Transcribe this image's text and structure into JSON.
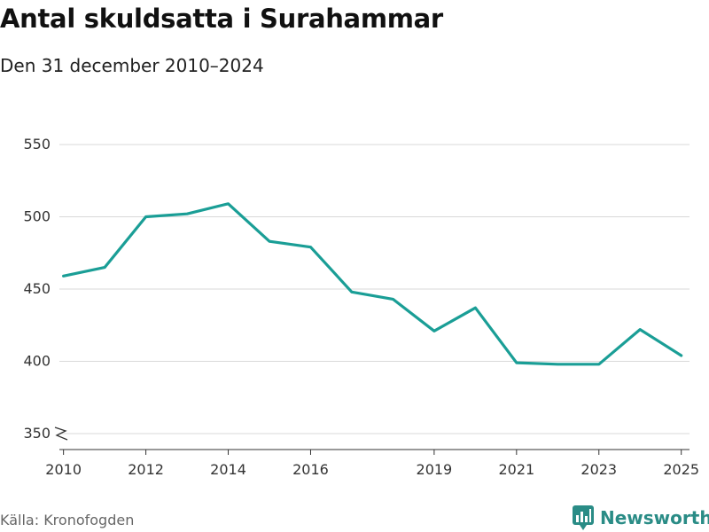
{
  "header": {
    "title": "Antal skuldsatta i Surahammar",
    "subtitle": "Den 31 december 2010–2024"
  },
  "footer": {
    "source": "Källa: Kronofogden",
    "brand": "Newsworthy"
  },
  "colors": {
    "line": "#1a9e96",
    "grid": "#d9d9d9",
    "axis": "#333333",
    "brand": "#2a8c86"
  },
  "chart_data": {
    "type": "line",
    "title": "Antal skuldsatta i Surahammar",
    "subtitle": "Den 31 december 2010–2024",
    "xlabel": "",
    "ylabel": "",
    "grid": true,
    "xlim": [
      2009.9,
      2025.2
    ],
    "ylim": [
      350,
      550
    ],
    "y_ticks": [
      350,
      400,
      450,
      500,
      550
    ],
    "x_ticks": [
      2010,
      2012,
      2014,
      2016,
      2019,
      2021,
      2023,
      2025
    ],
    "axis_break": true,
    "series": [
      {
        "name": "Antal skuldsatta",
        "x": [
          2010,
          2011,
          2012,
          2013,
          2014,
          2015,
          2016,
          2017,
          2018,
          2019,
          2020,
          2021,
          2022,
          2023,
          2024,
          2025
        ],
        "values": [
          459,
          465,
          500,
          502,
          509,
          483,
          479,
          448,
          443,
          421,
          437,
          399,
          398,
          398,
          422,
          404
        ]
      }
    ]
  }
}
